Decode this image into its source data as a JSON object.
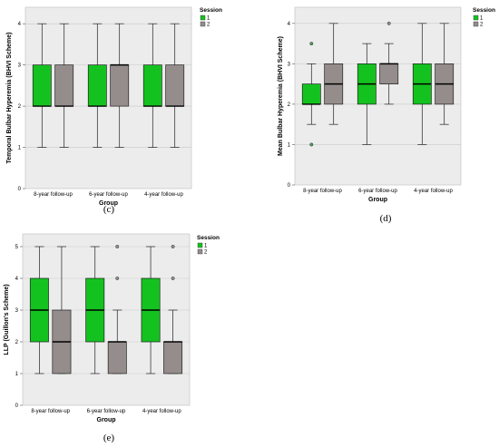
{
  "colors": {
    "session1": "#14c21f",
    "session2": "#958c8c",
    "panel_bg": "#ececec",
    "grid": "#c9c9c9",
    "outlier_fill": "#4c9e55"
  },
  "chart_data": [
    {
      "type": "boxplot",
      "caption": "(c)",
      "xlabel": "Group",
      "ylabel": "Temporal Bulbar Hyperemia (BHVI Scheme)",
      "ylim": [
        0,
        4.4
      ],
      "yticks": [
        "0",
        "1",
        "2",
        "3",
        "4"
      ],
      "grid": true,
      "legend": {
        "title": "Session",
        "labels": [
          "1",
          "2"
        ],
        "position": "right"
      },
      "categories": [
        "8-year follow-up",
        "6-year follow-up",
        "4-year follow-up"
      ],
      "series": [
        {
          "name": "1",
          "boxes": [
            {
              "min": 1,
              "q1": 2,
              "median": 2,
              "q3": 3,
              "max": 4,
              "outliers": []
            },
            {
              "min": 1,
              "q1": 2,
              "median": 2,
              "q3": 3,
              "max": 4,
              "outliers": []
            },
            {
              "min": 1,
              "q1": 2,
              "median": 2,
              "q3": 3,
              "max": 4,
              "outliers": []
            }
          ]
        },
        {
          "name": "2",
          "boxes": [
            {
              "min": 1,
              "q1": 2,
              "median": 2,
              "q3": 3,
              "max": 4,
              "outliers": []
            },
            {
              "min": 1,
              "q1": 2,
              "median": 3,
              "q3": 3,
              "max": 4,
              "outliers": []
            },
            {
              "min": 1,
              "q1": 2,
              "median": 2,
              "q3": 3,
              "max": 4,
              "outliers": []
            }
          ]
        }
      ]
    },
    {
      "type": "boxplot",
      "caption": "(d)",
      "xlabel": "Group",
      "ylabel": "Mean Bulbar Hyperemia (BHVI Scheme)",
      "ylim": [
        0,
        4.4
      ],
      "yticks": [
        "0",
        "1",
        "2",
        "3",
        "4"
      ],
      "grid": true,
      "legend": {
        "title": "Session",
        "labels": [
          "1",
          "2"
        ],
        "position": "right"
      },
      "categories": [
        "8-year follow-up",
        "6-year follow-up",
        "4-year follow-up"
      ],
      "series": [
        {
          "name": "1",
          "boxes": [
            {
              "min": 1.5,
              "q1": 2,
              "median": 2,
              "q3": 2.5,
              "max": 3,
              "outliers": [
                3.5,
                1
              ]
            },
            {
              "min": 1,
              "q1": 2,
              "median": 2.5,
              "q3": 3,
              "max": 3.5,
              "outliers": []
            },
            {
              "min": 1,
              "q1": 2,
              "median": 2.5,
              "q3": 3,
              "max": 4,
              "outliers": []
            }
          ]
        },
        {
          "name": "2",
          "boxes": [
            {
              "min": 1.5,
              "q1": 2,
              "median": 2.5,
              "q3": 3,
              "max": 4,
              "outliers": []
            },
            {
              "min": 2,
              "q1": 2.5,
              "median": 3,
              "q3": 3,
              "max": 3.5,
              "outliers": [
                4
              ]
            },
            {
              "min": 1.5,
              "q1": 2,
              "median": 2.5,
              "q3": 3,
              "max": 4,
              "outliers": []
            }
          ]
        }
      ]
    },
    {
      "type": "boxplot",
      "caption": "(e)",
      "xlabel": "Group",
      "ylabel": "LLP (Guillon's Scheme)",
      "ylim": [
        0,
        5.4
      ],
      "yticks": [
        "0",
        "1",
        "2",
        "3",
        "4",
        "5"
      ],
      "grid": true,
      "legend": {
        "title": "Session",
        "labels": [
          "1",
          "2"
        ],
        "position": "right"
      },
      "categories": [
        "8-year follow-up",
        "6-year follow-up",
        "4-year follow-up"
      ],
      "series": [
        {
          "name": "1",
          "boxes": [
            {
              "min": 1,
              "q1": 2,
              "median": 3,
              "q3": 4,
              "max": 5,
              "outliers": []
            },
            {
              "min": 1,
              "q1": 2,
              "median": 3,
              "q3": 4,
              "max": 5,
              "outliers": []
            },
            {
              "min": 1,
              "q1": 2,
              "median": 3,
              "q3": 4,
              "max": 5,
              "outliers": []
            }
          ]
        },
        {
          "name": "2",
          "boxes": [
            {
              "min": 1,
              "q1": 1,
              "median": 2,
              "q3": 3,
              "max": 5,
              "outliers": []
            },
            {
              "min": 1,
              "q1": 1,
              "median": 2,
              "q3": 2,
              "max": 3,
              "outliers": [
                4,
                5
              ]
            },
            {
              "min": 1,
              "q1": 1,
              "median": 2,
              "q3": 2,
              "max": 3,
              "outliers": [
                4,
                5
              ]
            }
          ]
        }
      ]
    }
  ]
}
